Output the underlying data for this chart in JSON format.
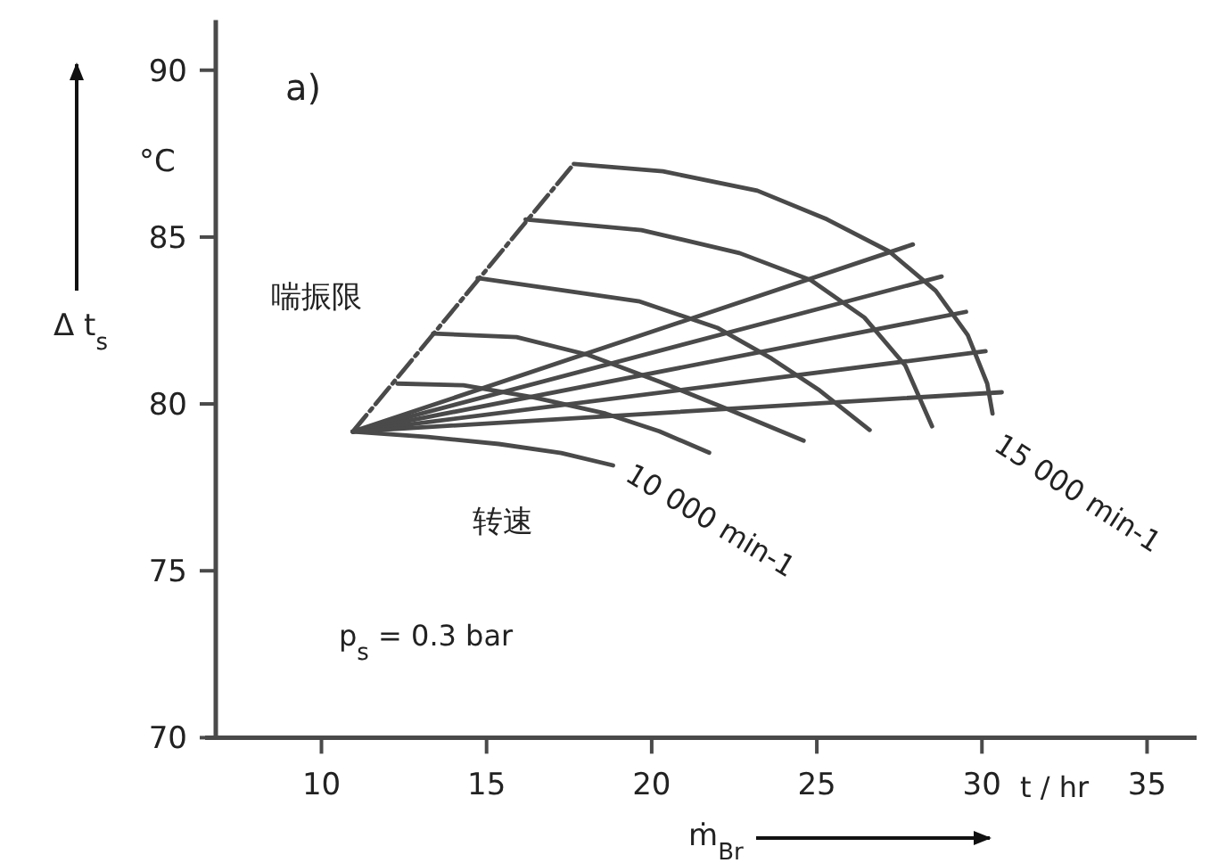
{
  "chart_data": {
    "type": "line",
    "xlabel": "ṁ$_{Br}$",
    "ylabel": "Δ t$_{s}$",
    "xlim": [
      6.8,
      36.5
    ],
    "ylim": [
      70,
      91.5
    ],
    "xticks": [
      10,
      15,
      20,
      25,
      30,
      35
    ],
    "yticks": [
      70,
      75,
      80,
      85,
      90
    ],
    "grid": false,
    "marker": "none",
    "series": [
      {
        "color": "#4a4a4a",
        "line_style": "dashed",
        "x": [
          10.95,
          17.64
        ],
        "values": [
          79.17,
          87.19
        ]
      },
      {
        "color": "#4a4a4a",
        "x": [
          17.64,
          20.34,
          23.2,
          25.31,
          27.19,
          28.6,
          29.57,
          30.16,
          30.32
        ],
        "values": [
          87.19,
          86.97,
          86.39,
          85.53,
          84.57,
          83.39,
          82.06,
          80.61,
          79.71
        ]
      },
      {
        "color": "#4a4a4a",
        "x": [
          16.18,
          19.69,
          22.66,
          24.82,
          26.44,
          27.68,
          28.49
        ],
        "values": [
          85.53,
          85.21,
          84.52,
          83.71,
          82.59,
          81.15,
          79.33
        ]
      },
      {
        "color": "#4a4a4a",
        "x": [
          14.73,
          19.64,
          22.01,
          23.63,
          25.09,
          26.6
        ],
        "values": [
          83.77,
          83.07,
          82.27,
          81.36,
          80.4,
          79.22
        ]
      },
      {
        "color": "#4a4a4a",
        "x": [
          13.38,
          15.91,
          18.07,
          20.23,
          22.39,
          24.6
        ],
        "values": [
          82.11,
          82.0,
          81.47,
          80.67,
          79.81,
          78.9
        ]
      },
      {
        "color": "#4a4a4a",
        "x": [
          12.3,
          14.3,
          16.45,
          18.61,
          20.23,
          21.74
        ],
        "values": [
          80.61,
          80.56,
          80.19,
          79.71,
          79.18,
          78.54
        ]
      },
      {
        "color": "#4a4a4a",
        "x": [
          10.95,
          13.22,
          15.37,
          17.26,
          18.83
        ],
        "values": [
          79.17,
          79.01,
          78.8,
          78.53,
          78.16
        ]
      },
      {
        "color": "#4a4a4a",
        "x": [
          10.95,
          27.91
        ],
        "values": [
          79.17,
          84.78
        ]
      },
      {
        "color": "#4a4a4a",
        "x": [
          10.95,
          28.78
        ],
        "values": [
          79.17,
          83.82
        ]
      },
      {
        "color": "#4a4a4a",
        "x": [
          10.95,
          29.52
        ],
        "values": [
          79.17,
          82.76
        ]
      },
      {
        "color": "#4a4a4a",
        "x": [
          10.95,
          30.11
        ],
        "values": [
          79.17,
          81.58
        ]
      },
      {
        "color": "#4a4a4a",
        "x": [
          10.95,
          30.6
        ],
        "values": [
          79.17,
          80.35
        ]
      }
    ],
    "annotations": [
      "a)",
      "°C",
      "喘振限",
      "转速",
      {
        "text": "10 000 min-1",
        "x": 18.83,
        "y": 78.16
      },
      {
        "text": "15 000 min-1",
        "x": 30.32,
        "y": 79.71
      },
      "p$_{s}$ = 0.3 bar",
      "t / hr"
    ]
  }
}
